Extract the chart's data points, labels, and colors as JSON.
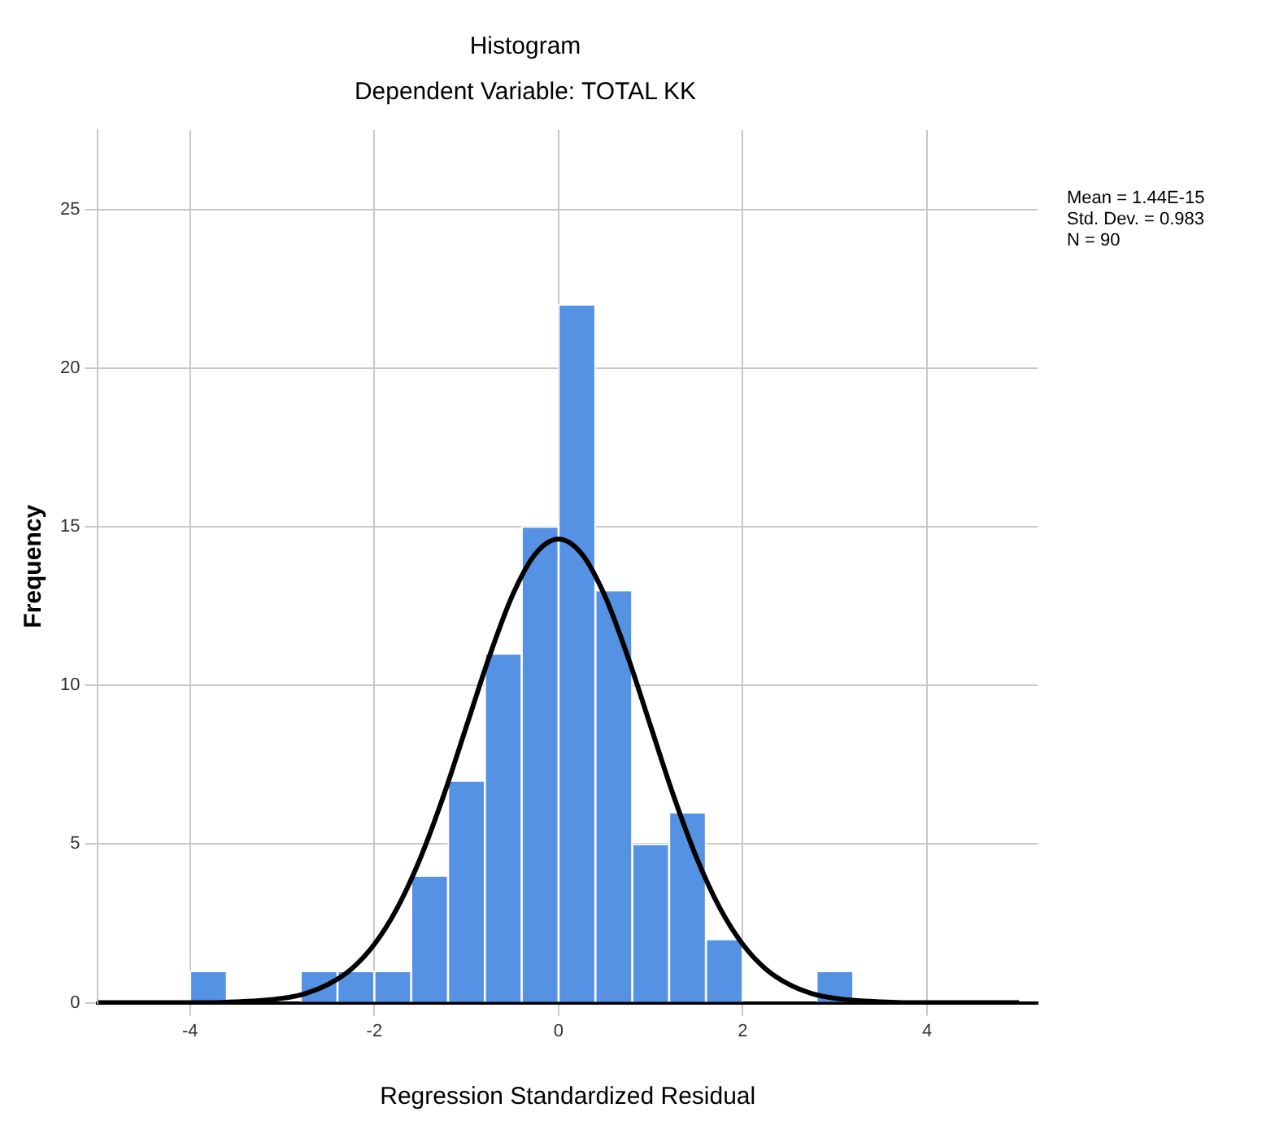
{
  "chart_data": {
    "type": "histogram",
    "title": "Histogram",
    "subtitle": "Dependent Variable: TOTAL KK",
    "xlabel": "Regression Standardized Residual",
    "ylabel": "Frequency",
    "bins": [
      -4.0,
      -3.6,
      -3.2,
      -2.8,
      -2.4,
      -2.0,
      -1.6,
      -1.2,
      -0.8,
      -0.4,
      0,
      0.4,
      0.8,
      1.2,
      1.6,
      2.0,
      2.4,
      2.8,
      3.2
    ],
    "values": [
      1,
      0,
      0,
      1,
      1,
      1,
      4,
      7,
      11,
      15,
      22,
      13,
      5,
      6,
      2,
      0,
      0,
      1
    ],
    "color": "#5592e3",
    "series": [
      {
        "type": "line",
        "color": "#000000",
        "x": [
          -5,
          -4,
          -3.5,
          -3,
          -2.75,
          -2.5,
          -2.25,
          -2,
          -1.75,
          -1.5,
          -1.25,
          -1,
          -0.75,
          -0.5,
          -0.25,
          0,
          0.25,
          0.5,
          0.75,
          1,
          1.25,
          1.5,
          1.75,
          2,
          2.25,
          2.5,
          2.75,
          3,
          3.5,
          4,
          5
        ],
        "values": [
          0,
          0,
          0.03,
          0.14,
          0.29,
          0.58,
          1.06,
          1.84,
          2.99,
          4.56,
          6.51,
          8.71,
          10.92,
          12.84,
          14.15,
          14.61,
          14.15,
          12.84,
          10.92,
          8.71,
          6.51,
          4.56,
          2.99,
          1.84,
          1.06,
          0.58,
          0.29,
          0.14,
          0.03,
          0,
          0
        ]
      }
    ],
    "xlim": [
      -5,
      5.2
    ],
    "xticks": [
      -4,
      -2,
      0,
      2,
      4
    ],
    "ylim": [
      0,
      27.5
    ],
    "yticks": [
      0,
      5,
      10,
      15,
      20,
      25
    ],
    "grid": true,
    "legend": false,
    "marker": "none",
    "annotations": [
      "Mean = 1.44E-15",
      "Std. Dev. = 0.983",
      "N = 90"
    ]
  }
}
